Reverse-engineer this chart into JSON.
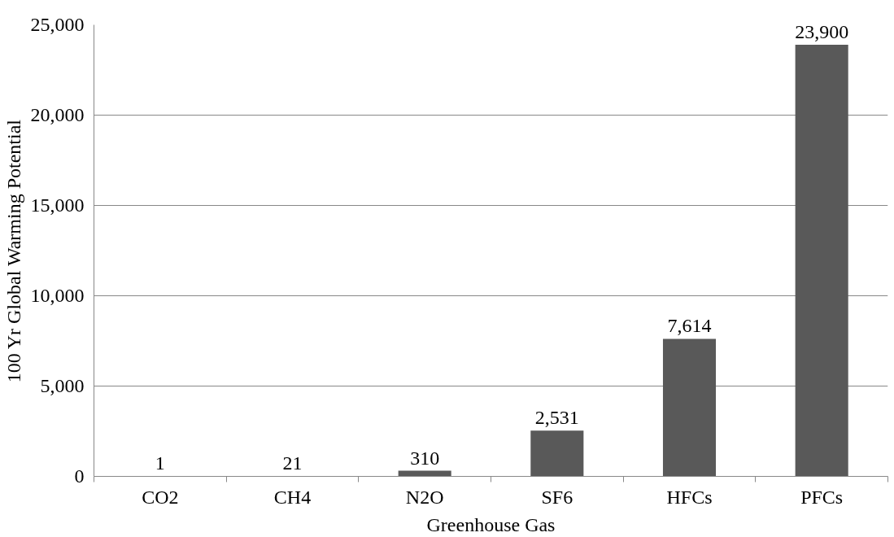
{
  "chart_data": {
    "type": "bar",
    "xlabel": "Greenhouse Gas",
    "ylabel": "100 Yr Global Warming Potential",
    "categories": [
      "CO2",
      "CH4",
      "N2O",
      "SF6",
      "HFCs",
      "PFCs"
    ],
    "values": [
      1,
      21,
      310,
      2531,
      7614,
      23900
    ],
    "value_labels": [
      "1",
      "21",
      "310",
      "2,531",
      "7,614",
      "23,900"
    ],
    "color": "#595959",
    "ylim": [
      0,
      25000
    ],
    "yticks": [
      0,
      {
        "value": 5000,
        "label": "5,000"
      },
      {
        "value": 10000,
        "label": "10,000"
      },
      {
        "value": 15000,
        "label": "15,000"
      },
      {
        "value": 20000,
        "label": "20,000"
      },
      {
        "value": 25000,
        "label": "25,000"
      }
    ],
    "grid": "y"
  }
}
